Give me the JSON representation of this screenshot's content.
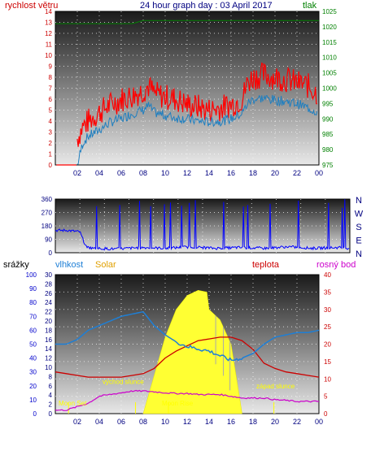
{
  "colors": {
    "wind": "#ff0000",
    "gust_blue": "#1f7fc0",
    "pressure": "#008000",
    "title": "#000080",
    "direction": "#0000ff",
    "humidity": "#1e7fd6",
    "temperature": "#cc0000",
    "dewpoint": "#cc00cc",
    "solar": "#ffff33",
    "rain": "#0000cc",
    "sun_label": "#ffff00",
    "moon_label": "#ffff00"
  },
  "chart_data": [
    {
      "type": "line",
      "title": "24 hour graph day : 03 April 2017",
      "left_label": "rychlost větru",
      "right_label": "tlak",
      "y_left": {
        "min": 0,
        "max": 14,
        "ticks": [
          "0",
          "1",
          "2",
          "3",
          "4",
          "5",
          "6",
          "7",
          "8",
          "9",
          "10",
          "11",
          "12",
          "13",
          "14"
        ]
      },
      "y_right": {
        "min": 975,
        "max": 1025,
        "ticks": [
          "975",
          "980",
          "985",
          "990",
          "995",
          "1000",
          "1005",
          "1010",
          "1015",
          "1020",
          "1025"
        ]
      },
      "x_ticks": [
        "02",
        "04",
        "06",
        "08",
        "10",
        "12",
        "14",
        "16",
        "18",
        "20",
        "22",
        "00"
      ],
      "series": [
        {
          "key": "wind",
          "x": [
            1.5,
            1.9,
            2.0,
            2.5,
            3,
            4,
            5,
            6,
            7,
            8,
            8.5,
            9,
            10,
            11,
            12,
            13,
            14,
            15,
            16,
            17,
            17.5,
            18,
            19,
            20,
            21,
            22,
            23,
            23.9
          ],
          "y": [
            0,
            0,
            2.4,
            3.5,
            4,
            4.8,
            5.5,
            6,
            6.3,
            6.8,
            7.2,
            6.5,
            6.2,
            6.0,
            5.5,
            5.3,
            5.0,
            5.2,
            5.5,
            6.0,
            7.5,
            8.0,
            8.2,
            8.0,
            7.8,
            7.5,
            7.2,
            6.5
          ]
        },
        {
          "key": "gust",
          "x": [
            2.0,
            2.5,
            3,
            4,
            5,
            6,
            7,
            8,
            8.5,
            9,
            10,
            11,
            12,
            13,
            14,
            15,
            16,
            17,
            17.5,
            18,
            19,
            20,
            21,
            22,
            23,
            23.9
          ],
          "y": [
            0,
            2.0,
            2.6,
            3.2,
            3.9,
            4.2,
            4.7,
            5.0,
            5.4,
            4.8,
            4.5,
            4.3,
            4.2,
            4.0,
            3.9,
            4.0,
            4.2,
            4.7,
            5.6,
            6.0,
            6.1,
            5.9,
            5.8,
            5.6,
            5.2,
            4.8
          ]
        },
        {
          "key": "pressure",
          "x": [
            0,
            1,
            2,
            3,
            4,
            5,
            6,
            7,
            8,
            9,
            10,
            11,
            12,
            13,
            14,
            15,
            16,
            17,
            18,
            19,
            20,
            21,
            22,
            23,
            24
          ],
          "y": [
            1021,
            1021,
            1021,
            1021,
            1021,
            1021,
            1021,
            1021,
            1022,
            1022,
            1022,
            1022,
            1022,
            1022,
            1022,
            1022,
            1022,
            1022,
            1022,
            1022,
            1022,
            1022,
            1022,
            1022,
            1022
          ]
        }
      ]
    },
    {
      "type": "scatter",
      "y_ticks": [
        "360",
        "270",
        "180",
        "90",
        "0"
      ],
      "compass": [
        "N",
        "W",
        "S",
        "E",
        "N"
      ],
      "series": [
        {
          "key": "direction",
          "x": [
            0,
            1,
            2,
            2.5,
            3,
            5,
            7,
            9,
            11,
            13,
            15,
            17,
            19,
            21,
            23,
            24
          ],
          "y": [
            150,
            150,
            140,
            40,
            30,
            25,
            35,
            30,
            40,
            30,
            35,
            30,
            40,
            30,
            35,
            30
          ]
        }
      ]
    },
    {
      "type": "line",
      "left_label": "srážky",
      "humidity_label": "vlhkost",
      "solar_label": "Solar",
      "temp_label": "teplota",
      "dew_label": "rosný bod",
      "y_rain": {
        "min": 0,
        "max": 100,
        "ticks": [
          "0",
          "10",
          "20",
          "30",
          "40",
          "50",
          "60",
          "70",
          "80",
          "90",
          "100"
        ]
      },
      "y_hum": {
        "min": 0,
        "max": 30,
        "ticks": [
          "0",
          "2",
          "4",
          "6",
          "8",
          "10",
          "12",
          "14",
          "16",
          "18",
          "20",
          "22",
          "24",
          "26",
          "28",
          "30"
        ]
      },
      "y_temp": {
        "min": 0,
        "max": 40,
        "ticks": [
          "0",
          "5",
          "10",
          "15",
          "20",
          "25",
          "30",
          "35",
          "40"
        ]
      },
      "x_ticks": [
        "02",
        "04",
        "06",
        "08",
        "10",
        "12",
        "14",
        "16",
        "18",
        "20",
        "22",
        "00"
      ],
      "annotations": [
        "Moon Set",
        "východ slunce",
        "Moon Rise",
        "západ slunce"
      ],
      "series": [
        {
          "key": "humidity",
          "x": [
            0,
            1,
            2,
            3,
            4,
            5,
            6,
            7,
            8,
            9,
            10,
            11,
            12,
            13,
            14,
            15,
            16,
            17,
            18,
            19,
            20,
            21,
            22,
            23,
            24
          ],
          "y": [
            15,
            15,
            16,
            18,
            19,
            20,
            21,
            21.5,
            22,
            19,
            17,
            15.5,
            14.5,
            14,
            13.5,
            12.5,
            11.5,
            12,
            13,
            15,
            16.5,
            17,
            17.5,
            17.5,
            18
          ]
        },
        {
          "key": "temperature",
          "x": [
            0,
            1,
            2,
            3,
            4,
            5,
            6,
            7,
            8,
            9,
            10,
            11,
            12,
            13,
            14,
            15,
            16,
            17,
            18,
            19,
            20,
            21,
            22,
            23,
            24
          ],
          "y": [
            12,
            11.5,
            11,
            10.5,
            10.5,
            10.5,
            10.5,
            11,
            11.5,
            13,
            16,
            18,
            19.5,
            21,
            21.5,
            22,
            22,
            21,
            18.5,
            14.5,
            13,
            12,
            11.5,
            11,
            10.5
          ]
        },
        {
          "key": "dewpoint",
          "x": [
            0,
            1,
            2,
            3,
            4,
            5,
            6,
            7,
            8,
            9,
            10,
            11,
            12,
            13,
            14,
            15,
            16,
            17,
            18,
            19,
            20,
            21,
            22,
            23,
            24
          ],
          "y": [
            1,
            1,
            2,
            3,
            5,
            5.5,
            6,
            6.5,
            6.5,
            6.3,
            6.0,
            5.8,
            5.8,
            5.5,
            5.5,
            5.5,
            5.0,
            4.5,
            4.5,
            4.5,
            4.0,
            3.8,
            3.5,
            3.5,
            3.5
          ]
        },
        {
          "key": "solar",
          "x": [
            8,
            9,
            10,
            11,
            12,
            13,
            13.8,
            14,
            15,
            16,
            16.5,
            17
          ],
          "y": [
            0,
            11,
            22,
            30,
            34,
            35.5,
            35,
            30,
            27,
            20,
            10,
            0
          ]
        }
      ]
    }
  ]
}
